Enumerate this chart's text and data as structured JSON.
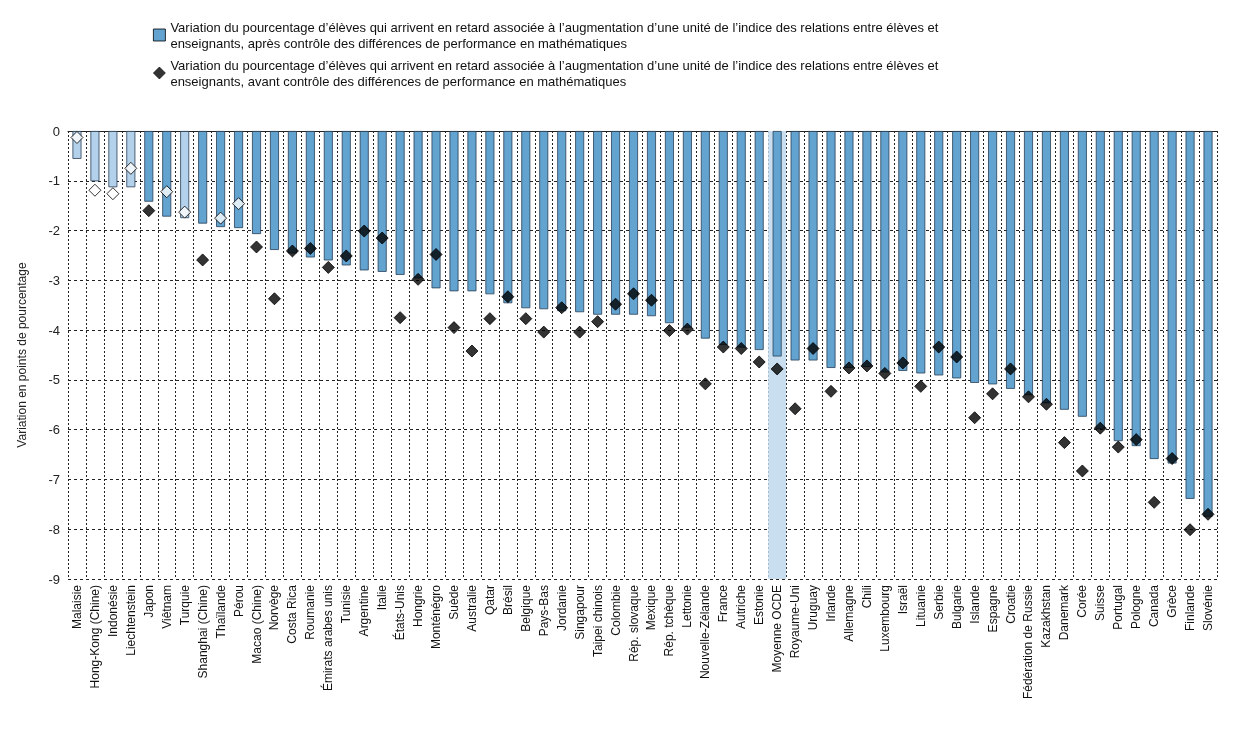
{
  "chart_data": {
    "type": "bar",
    "ylabel": "Variation en points de pourcentage",
    "categories": [
      "Malaisie",
      "Hong-Kong (Chine)",
      "Indonésie",
      "Liechtenstein",
      "Japon",
      "Viêtnam",
      "Turquie",
      "Shanghai (Chine)",
      "Thaïlande",
      "Pérou",
      "Macao (Chine)",
      "Norvège",
      "Costa Rica",
      "Roumanie",
      "Émirats arabes unis",
      "Tunisie",
      "Argentine",
      "Italie",
      "États-Unis",
      "Hongrie",
      "Monténégro",
      "Suède",
      "Australie",
      "Qatar",
      "Brésil",
      "Belgique",
      "Pays-Bas",
      "Jordanie",
      "Singapour",
      "Taipei chinois",
      "Colombie",
      "Rép. slovaque",
      "Mexique",
      "Rép. tchèque",
      "Lettonie",
      "Nouvelle-Zélande",
      "France",
      "Autriche",
      "Estonie",
      "Moyenne OCDE",
      "Royaume-Uni",
      "Uruguay",
      "Irlande",
      "Allemagne",
      "Chili",
      "Luxembourg",
      "Israël",
      "Lituanie",
      "Serbie",
      "Bulgarie",
      "Islande",
      "Espagne",
      "Croatie",
      "Fédération de Russie",
      "Kazakhstan",
      "Danemark",
      "Corée",
      "Suisse",
      "Portugal",
      "Pologne",
      "Canada",
      "Grèce",
      "Finlande",
      "Slovénie"
    ],
    "series": [
      {
        "name": "Variation du pourcentage d’élèves qui arrivent en retard associée à l’augmentation d’une unité de l’indice des relations entre élèves et enseignants, après contrôle des différences de performance en mathématiques",
        "color": "#62a3d0",
        "colors": [
          "#b3d1ea",
          "#b3d1ea",
          "#b3d1ea",
          "#b3d1ea",
          "#62a3d0",
          "#62a3d0",
          "#b3d1ea",
          "#62a3d0",
          "#62a3d0",
          "#62a3d0",
          "#62a3d0",
          "#62a3d0",
          "#62a3d0",
          "#62a3d0",
          "#62a3d0",
          "#62a3d0",
          "#62a3d0",
          "#62a3d0",
          "#62a3d0",
          "#62a3d0",
          "#62a3d0",
          "#62a3d0",
          "#62a3d0",
          "#62a3d0",
          "#62a3d0",
          "#62a3d0",
          "#62a3d0",
          "#62a3d0",
          "#62a3d0",
          "#62a3d0",
          "#62a3d0",
          "#62a3d0",
          "#62a3d0",
          "#62a3d0",
          "#62a3d0",
          "#62a3d0",
          "#62a3d0",
          "#62a3d0",
          "#62a3d0",
          "#62a3d0",
          "#62a3d0",
          "#62a3d0",
          "#62a3d0",
          "#62a3d0",
          "#62a3d0",
          "#62a3d0",
          "#62a3d0",
          "#62a3d0",
          "#62a3d0",
          "#62a3d0",
          "#62a3d0",
          "#62a3d0",
          "#62a3d0",
          "#62a3d0",
          "#62a3d0",
          "#62a3d0",
          "#62a3d0",
          "#62a3d0",
          "#62a3d0",
          "#62a3d0",
          "#62a3d0",
          "#62a3d0",
          "#62a3d0",
          "#62a3d0"
        ],
        "values": [
          -0.56,
          -1.01,
          -1.13,
          -1.13,
          -1.42,
          -1.72,
          -1.75,
          -1.86,
          -1.93,
          -1.95,
          -2.07,
          -2.39,
          -2.46,
          -2.54,
          -2.6,
          -2.7,
          -2.8,
          -2.83,
          -2.89,
          -2.96,
          -3.16,
          -3.22,
          -3.22,
          -3.28,
          -3.46,
          -3.56,
          -3.58,
          -3.62,
          -3.64,
          -3.69,
          -3.69,
          -3.69,
          -3.72,
          -3.86,
          -3.95,
          -4.17,
          -4.3,
          -4.35,
          -4.4,
          -4.53,
          -4.61,
          -4.61,
          -4.76,
          -4.76,
          -4.74,
          -4.85,
          -4.82,
          -4.87,
          -4.91,
          -4.97,
          -5.06,
          -5.09,
          -5.18,
          -5.31,
          -5.47,
          -5.6,
          -5.74,
          -5.99,
          -6.23,
          -6.33,
          -6.59,
          -6.68,
          -7.39,
          -7.75
        ]
      },
      {
        "type": "scatter",
        "name": "Variation du pourcentage d’élèves qui arrivent en retard associée à l’augmentation d’une unité de l’indice des relations entre élèves et enseignants, avant contrôle des différences de performance en mathématiques",
        "color": "#000000",
        "marker": "diamond",
        "x": [
          "Malaisie",
          "Hong-Kong (Chine)",
          "Indonésie",
          "Liechtenstein",
          "Japon",
          "Viêtnam",
          "Turquie",
          "Shanghai (Chine)",
          "Thaïlande",
          "Pérou",
          "Macao (Chine)",
          "Norvège",
          "Costa Rica",
          "Roumanie",
          "Émirats arabes unis",
          "Tunisie",
          "Argentine",
          "Italie",
          "États-Unis",
          "Hongrie",
          "Monténégro",
          "Suède",
          "Australie",
          "Qatar",
          "Brésil",
          "Belgique",
          "Pays-Bas",
          "Jordanie",
          "Singapour",
          "Taipei chinois",
          "Colombie",
          "Rép. slovaque",
          "Mexique",
          "Rép. tchèque",
          "Lettonie",
          "Nouvelle-Zélande",
          "France",
          "Autriche",
          "Estonie",
          "Moyenne OCDE",
          "Royaume-Uni",
          "Uruguay",
          "Irlande",
          "Allemagne",
          "Chili",
          "Luxembourg",
          "Israël",
          "Lituanie",
          "Serbie",
          "Bulgarie",
          "Islande",
          "Espagne",
          "Croatie",
          "Fédération de Russie",
          "Kazakhstan",
          "Danemark",
          "Corée",
          "Suisse",
          "Portugal",
          "Pologne",
          "Canada",
          "Grèce",
          "Finlande",
          "Slovénie"
        ],
        "colors": [
          "#ffffff",
          "#ffffff",
          "#ffffff",
          "#ffffff",
          "#000000",
          "#ffffff",
          "#ffffff",
          "#000000",
          "#ffffff",
          "#ffffff",
          "#000000",
          "#000000",
          "#000000",
          "#000000",
          "#000000",
          "#000000",
          "#000000",
          "#000000",
          "#000000",
          "#000000",
          "#000000",
          "#000000",
          "#000000",
          "#000000",
          "#000000",
          "#000000",
          "#000000",
          "#000000",
          "#000000",
          "#000000",
          "#000000",
          "#000000",
          "#000000",
          "#000000",
          "#000000",
          "#000000",
          "#000000",
          "#000000",
          "#000000",
          "#000000",
          "#000000",
          "#000000",
          "#000000",
          "#000000",
          "#000000",
          "#000000",
          "#000000",
          "#000000",
          "#000000",
          "#000000",
          "#000000",
          "#000000",
          "#000000",
          "#000000",
          "#000000",
          "#000000",
          "#000000",
          "#000000",
          "#000000",
          "#000000",
          "#000000",
          "#000000",
          "#000000",
          "#000000"
        ],
        "values": [
          -0.13,
          -1.19,
          -1.26,
          -0.75,
          -1.6,
          -1.22,
          -1.63,
          -2.59,
          -1.75,
          -1.46,
          -2.33,
          -3.37,
          -2.41,
          -2.36,
          -2.74,
          -2.51,
          -2.01,
          -2.15,
          -3.75,
          -2.98,
          -2.48,
          -3.95,
          -4.42,
          -3.77,
          -3.33,
          -3.77,
          -4.04,
          -3.55,
          -4.04,
          -3.83,
          -3.48,
          -3.27,
          -3.4,
          -4.01,
          -3.98,
          -5.08,
          -4.34,
          -4.37,
          -4.64,
          -4.78,
          -5.58,
          -4.37,
          -5.23,
          -4.76,
          -4.72,
          -4.87,
          -4.66,
          -5.13,
          -4.34,
          -4.54,
          -5.76,
          -5.28,
          -4.78,
          -5.34,
          -5.49,
          -6.26,
          -6.83,
          -5.97,
          -6.35,
          -6.2,
          -7.46,
          -6.58,
          -8.01,
          -7.7
        ]
      }
    ],
    "bands": [
      {
        "axis": "x",
        "from": "Moyenne OCDE",
        "to": "Moyenne OCDE",
        "color": "#c9dff0"
      }
    ],
    "ylim": [
      -9,
      0
    ],
    "yticks": [
      0,
      -1,
      -2,
      -3,
      -4,
      -5,
      -6,
      -7,
      -8,
      -9
    ],
    "grid": true,
    "legend": "top"
  }
}
